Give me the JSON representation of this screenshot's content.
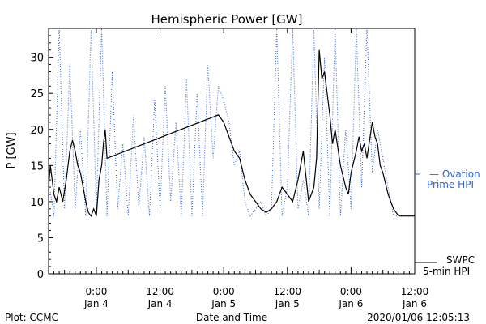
{
  "chart_data": {
    "type": "line",
    "title": "Hemispheric Power [GW]",
    "xlabel": "Date and Time",
    "ylabel": "P [GW]",
    "ylim": [
      0,
      34
    ],
    "xlim": [
      "2020-01-03T15:00",
      "2020-01-06T12:00"
    ],
    "y_ticks": [
      0,
      5,
      10,
      15,
      20,
      25,
      30
    ],
    "x_ticks": [
      {
        "t": "2020-01-04T00:00",
        "line1": "0:00",
        "line2": "Jan 4"
      },
      {
        "t": "2020-01-04T12:00",
        "line1": "12:00",
        "line2": "Jan 4"
      },
      {
        "t": "2020-01-05T00:00",
        "line1": "0:00",
        "line2": "Jan 5"
      },
      {
        "t": "2020-01-05T12:00",
        "line1": "12:00",
        "line2": "Jan 5"
      },
      {
        "t": "2020-01-06T00:00",
        "line1": "0:00",
        "line2": "Jan 6"
      },
      {
        "t": "2020-01-06T12:00",
        "line1": "12:00",
        "line2": "Jan 6"
      }
    ],
    "series": [
      {
        "name": "Ovation Prime HPI",
        "legend_lines": [
          "— Ovation",
          "Prime HPI"
        ],
        "color": "#3366cc",
        "style": "dotted",
        "points": [
          [
            "2020-01-03T15:00",
            13
          ],
          [
            "2020-01-03T16:00",
            8
          ],
          [
            "2020-01-03T17:00",
            34
          ],
          [
            "2020-01-03T18:00",
            9
          ],
          [
            "2020-01-03T19:00",
            29
          ],
          [
            "2020-01-03T20:00",
            9
          ],
          [
            "2020-01-03T21:00",
            20
          ],
          [
            "2020-01-03T22:00",
            8
          ],
          [
            "2020-01-03T23:00",
            34
          ],
          [
            "2020-01-04T00:00",
            9
          ],
          [
            "2020-01-04T01:00",
            34
          ],
          [
            "2020-01-04T02:00",
            8
          ],
          [
            "2020-01-04T03:00",
            28
          ],
          [
            "2020-01-04T04:00",
            9
          ],
          [
            "2020-01-04T05:00",
            18
          ],
          [
            "2020-01-04T06:00",
            8
          ],
          [
            "2020-01-04T07:00",
            22
          ],
          [
            "2020-01-04T08:00",
            9
          ],
          [
            "2020-01-04T09:00",
            19
          ],
          [
            "2020-01-04T10:00",
            8
          ],
          [
            "2020-01-04T11:00",
            24
          ],
          [
            "2020-01-04T12:00",
            9
          ],
          [
            "2020-01-04T13:00",
            26
          ],
          [
            "2020-01-04T14:00",
            10
          ],
          [
            "2020-01-04T15:00",
            21
          ],
          [
            "2020-01-04T16:00",
            8
          ],
          [
            "2020-01-04T17:00",
            27
          ],
          [
            "2020-01-04T18:00",
            8
          ],
          [
            "2020-01-04T19:00",
            25
          ],
          [
            "2020-01-04T20:00",
            8
          ],
          [
            "2020-01-04T21:00",
            29
          ],
          [
            "2020-01-04T22:00",
            16
          ],
          [
            "2020-01-04T23:00",
            26
          ],
          [
            "2020-01-05T00:00",
            24
          ],
          [
            "2020-01-05T01:00",
            21
          ],
          [
            "2020-01-05T02:00",
            15
          ],
          [
            "2020-01-05T03:00",
            17
          ],
          [
            "2020-01-05T04:00",
            10
          ],
          [
            "2020-01-05T05:00",
            8
          ],
          [
            "2020-01-05T06:00",
            9
          ],
          [
            "2020-01-05T07:00",
            10
          ],
          [
            "2020-01-05T08:00",
            8
          ],
          [
            "2020-01-05T09:00",
            9
          ],
          [
            "2020-01-05T10:00",
            34
          ],
          [
            "2020-01-05T11:00",
            8
          ],
          [
            "2020-01-05T12:00",
            12
          ],
          [
            "2020-01-05T13:00",
            34
          ],
          [
            "2020-01-05T14:00",
            9
          ],
          [
            "2020-01-05T15:00",
            13
          ],
          [
            "2020-01-05T16:00",
            8
          ],
          [
            "2020-01-05T17:00",
            34
          ],
          [
            "2020-01-05T18:00",
            9
          ],
          [
            "2020-01-05T19:00",
            30
          ],
          [
            "2020-01-05T20:00",
            8
          ],
          [
            "2020-01-05T21:00",
            34
          ],
          [
            "2020-01-05T22:00",
            8
          ],
          [
            "2020-01-05T23:00",
            20
          ],
          [
            "2020-01-06T00:00",
            9
          ],
          [
            "2020-01-06T01:00",
            34
          ],
          [
            "2020-01-06T02:00",
            12
          ],
          [
            "2020-01-06T03:00",
            34
          ],
          [
            "2020-01-06T04:00",
            14
          ],
          [
            "2020-01-06T05:00",
            20
          ],
          [
            "2020-01-06T06:00",
            16
          ],
          [
            "2020-01-06T07:00",
            12
          ],
          [
            "2020-01-06T08:00",
            8
          ],
          [
            "2020-01-06T09:00",
            8
          ],
          [
            "2020-01-06T10:00",
            8
          ],
          [
            "2020-01-06T11:00",
            8
          ],
          [
            "2020-01-06T12:00",
            8
          ]
        ]
      },
      {
        "name": "SWPC 5-min HPI",
        "legend_lines": [
          "SWPC",
          "5-min HPI"
        ],
        "color": "#000000",
        "style": "solid",
        "points": [
          [
            "2020-01-03T15:00",
            12
          ],
          [
            "2020-01-03T15:20",
            15
          ],
          [
            "2020-01-03T15:40",
            13
          ],
          [
            "2020-01-03T16:00",
            11
          ],
          [
            "2020-01-03T16:30",
            10
          ],
          [
            "2020-01-03T17:00",
            12
          ],
          [
            "2020-01-03T17:40",
            10
          ],
          [
            "2020-01-03T18:20",
            13
          ],
          [
            "2020-01-03T19:00",
            17
          ],
          [
            "2020-01-03T19:30",
            18.5
          ],
          [
            "2020-01-03T20:00",
            17
          ],
          [
            "2020-01-03T20:30",
            15
          ],
          [
            "2020-01-03T21:00",
            14
          ],
          [
            "2020-01-03T21:30",
            12
          ],
          [
            "2020-01-03T22:00",
            10
          ],
          [
            "2020-01-03T22:30",
            8.5
          ],
          [
            "2020-01-03T23:00",
            8
          ],
          [
            "2020-01-03T23:30",
            9
          ],
          [
            "2020-01-04T00:00",
            8
          ],
          [
            "2020-01-04T00:30",
            13
          ],
          [
            "2020-01-04T01:00",
            15
          ],
          [
            "2020-01-04T01:20",
            18
          ],
          [
            "2020-01-04T01:40",
            20
          ],
          [
            "2020-01-04T02:00",
            16
          ],
          [
            "2020-01-04T23:00",
            22
          ],
          [
            "2020-01-05T00:00",
            21
          ],
          [
            "2020-01-05T00:30",
            20
          ],
          [
            "2020-01-05T01:00",
            19
          ],
          [
            "2020-01-05T02:00",
            17
          ],
          [
            "2020-01-05T03:00",
            16
          ],
          [
            "2020-01-05T04:00",
            13
          ],
          [
            "2020-01-05T05:00",
            11
          ],
          [
            "2020-01-05T06:00",
            10
          ],
          [
            "2020-01-05T07:00",
            9
          ],
          [
            "2020-01-05T08:00",
            8.5
          ],
          [
            "2020-01-05T09:00",
            9
          ],
          [
            "2020-01-05T10:00",
            10
          ],
          [
            "2020-01-05T11:00",
            12
          ],
          [
            "2020-01-05T12:00",
            11
          ],
          [
            "2020-01-05T13:00",
            10
          ],
          [
            "2020-01-05T14:00",
            13
          ],
          [
            "2020-01-05T15:00",
            17
          ],
          [
            "2020-01-05T16:00",
            10
          ],
          [
            "2020-01-05T17:00",
            12
          ],
          [
            "2020-01-05T17:30",
            16
          ],
          [
            "2020-01-05T18:00",
            31
          ],
          [
            "2020-01-05T18:30",
            27
          ],
          [
            "2020-01-05T19:00",
            28
          ],
          [
            "2020-01-05T19:30",
            25
          ],
          [
            "2020-01-05T20:00",
            22
          ],
          [
            "2020-01-05T20:30",
            18
          ],
          [
            "2020-01-05T21:00",
            20
          ],
          [
            "2020-01-05T22:00",
            15
          ],
          [
            "2020-01-05T23:00",
            12
          ],
          [
            "2020-01-05T23:30",
            11
          ],
          [
            "2020-01-06T00:00",
            14
          ],
          [
            "2020-01-06T01:00",
            17
          ],
          [
            "2020-01-06T01:30",
            19
          ],
          [
            "2020-01-06T02:00",
            17
          ],
          [
            "2020-01-06T02:30",
            18
          ],
          [
            "2020-01-06T03:00",
            16
          ],
          [
            "2020-01-06T04:00",
            21
          ],
          [
            "2020-01-06T04:30",
            19
          ],
          [
            "2020-01-06T05:00",
            18
          ],
          [
            "2020-01-06T05:30",
            15
          ],
          [
            "2020-01-06T06:00",
            14
          ],
          [
            "2020-01-06T07:00",
            11
          ],
          [
            "2020-01-06T08:00",
            9
          ],
          [
            "2020-01-06T09:00",
            8
          ],
          [
            "2020-01-06T12:00",
            8
          ]
        ]
      }
    ],
    "grid": false,
    "legend_position": "right"
  },
  "footer": {
    "left": "Plot: CCMC",
    "right": "2020/01/06 12:05:13"
  },
  "colors": {
    "axis": "#000000",
    "ovation": "#3366cc",
    "swpc": "#000000"
  }
}
